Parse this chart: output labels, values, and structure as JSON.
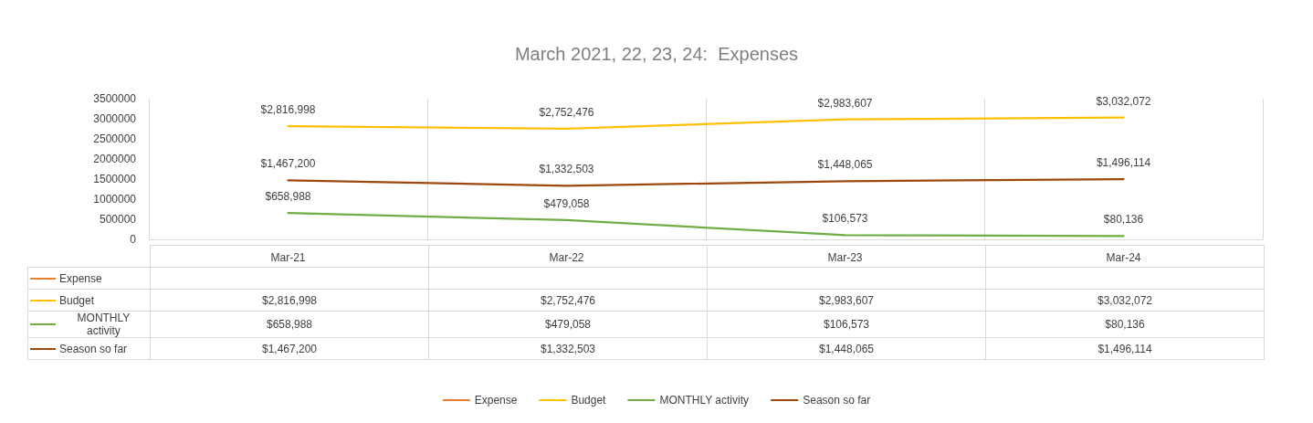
{
  "chart_data": {
    "type": "line",
    "title": "March 2021, 22, 23, 24:  Expenses",
    "categories": [
      "Mar-21",
      "Mar-22",
      "Mar-23",
      "Mar-24"
    ],
    "series": [
      {
        "name": "Expense",
        "color": "#ed7d31",
        "values": [
          null,
          null,
          null,
          null
        ],
        "value_labels": [
          null,
          null,
          null,
          null
        ]
      },
      {
        "name": "Budget",
        "color": "#ffc000",
        "values": [
          2816998,
          2752476,
          2983607,
          3032072
        ],
        "value_labels": [
          "$2,816,998",
          "$2,752,476",
          "$2,983,607",
          "$3,032,072"
        ]
      },
      {
        "name": "MONTHLY activity",
        "color": "#70ad47",
        "values": [
          658988,
          479058,
          106573,
          80136
        ],
        "value_labels": [
          "$658,988",
          "$479,058",
          "$106,573",
          "$80,136"
        ]
      },
      {
        "name": "Season so far",
        "color": "#9e480e",
        "values": [
          1467200,
          1332503,
          1448065,
          1496114
        ],
        "value_labels": [
          "$1,467,200",
          "$1,332,503",
          "$1,448,065",
          "$1,496,114"
        ]
      }
    ],
    "ylim": [
      0,
      3500000
    ],
    "yticks": [
      0,
      500000,
      1000000,
      1500000,
      2000000,
      2500000,
      3000000,
      3500000
    ],
    "grid": "x",
    "legend": "bottom",
    "marker": "none",
    "line_style": "solid"
  }
}
